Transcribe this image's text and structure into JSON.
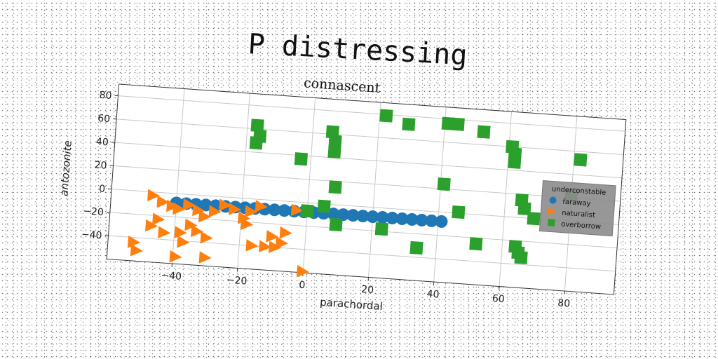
{
  "figure_title": "P distressing",
  "chart_data": {
    "type": "scatter",
    "title": "connascent",
    "xlabel": "parachordal",
    "ylabel": "antozonite",
    "xlim": [
      -60,
      95
    ],
    "ylim": [
      -60,
      90
    ],
    "xticks": [
      -40,
      -20,
      0,
      20,
      40,
      60,
      80
    ],
    "yticks": [
      -40,
      -20,
      0,
      20,
      40,
      60,
      80
    ],
    "grid": true,
    "legend": {
      "title": "underconstable",
      "placement": "right"
    },
    "series": [
      {
        "name": "faraway",
        "marker": "circle",
        "color": "#1f77b4",
        "points": [
          [
            -40,
            -8
          ],
          [
            -37,
            -8
          ],
          [
            -34,
            -8
          ],
          [
            -31,
            -8
          ],
          [
            -28,
            -8
          ],
          [
            -25,
            -8
          ],
          [
            -22,
            -8
          ],
          [
            -19,
            -8
          ],
          [
            -16,
            -8
          ],
          [
            -13,
            -8
          ],
          [
            -10,
            -8
          ],
          [
            -7,
            -8
          ],
          [
            -4,
            -8
          ],
          [
            -1,
            -8
          ],
          [
            2,
            -8
          ],
          [
            5,
            -8
          ],
          [
            8,
            -8
          ],
          [
            11,
            -8
          ],
          [
            14,
            -8
          ],
          [
            17,
            -8
          ],
          [
            20,
            -8
          ],
          [
            23,
            -8
          ],
          [
            26,
            -8
          ],
          [
            29,
            -8
          ],
          [
            32,
            -8
          ],
          [
            35,
            -8
          ],
          [
            38,
            -8
          ],
          [
            41,
            -8
          ]
        ]
      },
      {
        "name": "naturalist",
        "marker": "triangle",
        "color": "#ff7f0e",
        "points": [
          [
            -47,
            -3
          ],
          [
            -44,
            -8
          ],
          [
            -41,
            -11
          ],
          [
            -39,
            -13
          ],
          [
            -36,
            -9
          ],
          [
            -33,
            -13
          ],
          [
            -31,
            -18
          ],
          [
            -28,
            -13
          ],
          [
            -25,
            -7
          ],
          [
            -22,
            -10
          ],
          [
            -19,
            -17
          ],
          [
            -17,
            -11
          ],
          [
            -14,
            -6
          ],
          [
            -45,
            -23
          ],
          [
            -47,
            -29
          ],
          [
            -43,
            -34
          ],
          [
            -38,
            -33
          ],
          [
            -35,
            -26
          ],
          [
            -33,
            -31
          ],
          [
            -30,
            -36
          ],
          [
            -37,
            -41
          ],
          [
            -30,
            -53
          ],
          [
            -39,
            -54
          ],
          [
            -52,
            -44
          ],
          [
            -51,
            -51
          ],
          [
            -18,
            -22
          ],
          [
            -16,
            -40
          ],
          [
            -12,
            -40
          ],
          [
            -10,
            -31
          ],
          [
            -9,
            -40
          ],
          [
            -7,
            -36
          ],
          [
            -6,
            -27
          ],
          [
            -3,
            -7
          ],
          [
            0,
            -59
          ]
        ]
      },
      {
        "name": "overborrow",
        "marker": "square",
        "color": "#2ca02c",
        "points": [
          [
            -17,
            63
          ],
          [
            -16,
            54
          ],
          [
            -17,
            48
          ],
          [
            -3,
            37
          ],
          [
            6,
            62
          ],
          [
            7,
            54
          ],
          [
            7,
            45
          ],
          [
            8,
            15
          ],
          [
            5,
            -2
          ],
          [
            0,
            -7
          ],
          [
            9,
            -17
          ],
          [
            22,
            79
          ],
          [
            29,
            73
          ],
          [
            23,
            -18
          ],
          [
            34,
            -32
          ],
          [
            41,
            76
          ],
          [
            44,
            76
          ],
          [
            52,
            71
          ],
          [
            41,
            24
          ],
          [
            46,
            1
          ],
          [
            52,
            -25
          ],
          [
            61,
            60
          ],
          [
            62,
            54
          ],
          [
            62,
            47
          ],
          [
            65,
            15
          ],
          [
            66,
            8
          ],
          [
            69,
            0
          ],
          [
            64,
            -25
          ],
          [
            65,
            -30
          ],
          [
            66,
            -34
          ],
          [
            82,
            53
          ],
          [
            80,
            22
          ]
        ]
      }
    ]
  }
}
